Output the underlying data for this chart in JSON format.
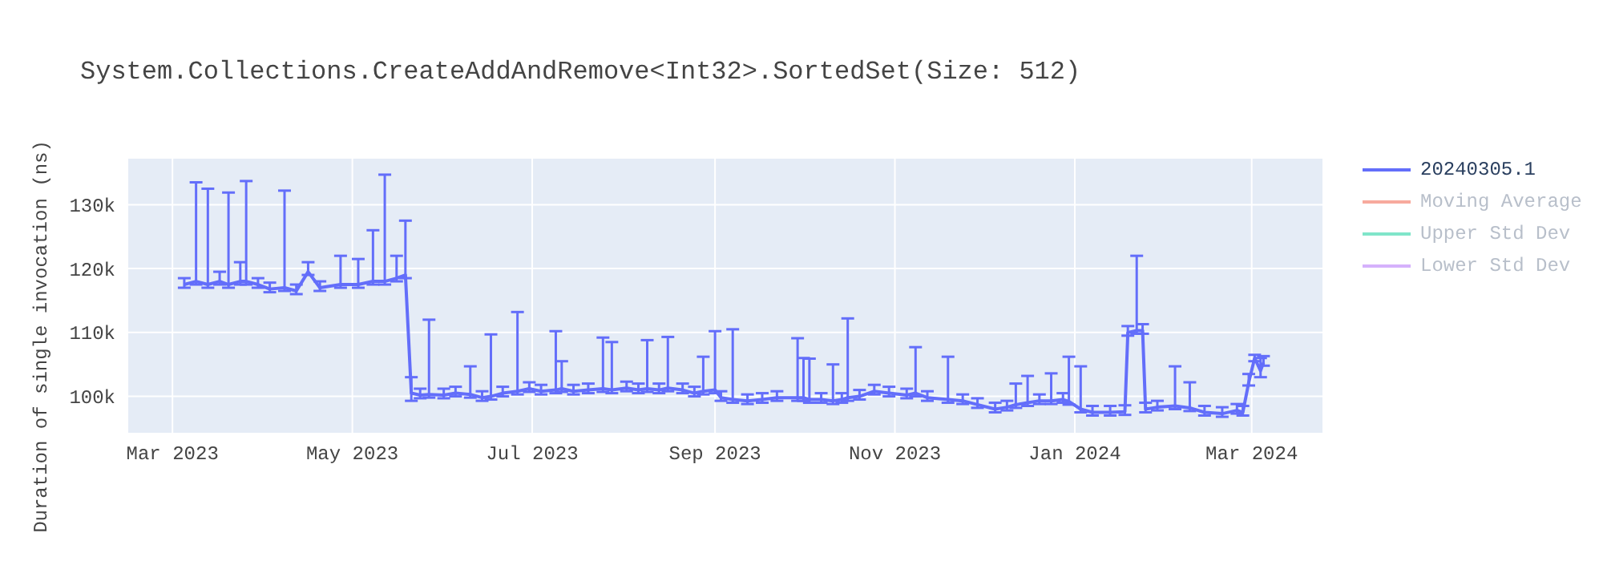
{
  "chart_data": {
    "type": "line",
    "title": "System.Collections.CreateAddAndRemove<Int32>.SortedSet(Size: 512)",
    "ylabel": "Duration of single invocation (ns)",
    "x": [
      "2023-03-05",
      "2023-03-09",
      "2023-03-13",
      "2023-03-17",
      "2023-03-20",
      "2023-03-24",
      "2023-03-26",
      "2023-03-30",
      "2023-04-03",
      "2023-04-08",
      "2023-04-12",
      "2023-04-16",
      "2023-04-20",
      "2023-04-27",
      "2023-05-03",
      "2023-05-08",
      "2023-05-12",
      "2023-05-16",
      "2023-05-19",
      "2023-05-21",
      "2023-05-24",
      "2023-05-27",
      "2023-06-01",
      "2023-06-05",
      "2023-06-10",
      "2023-06-14",
      "2023-06-17",
      "2023-06-21",
      "2023-06-26",
      "2023-06-30",
      "2023-07-04",
      "2023-07-09",
      "2023-07-11",
      "2023-07-15",
      "2023-07-20",
      "2023-07-25",
      "2023-07-28",
      "2023-08-02",
      "2023-08-06",
      "2023-08-09",
      "2023-08-13",
      "2023-08-16",
      "2023-08-21",
      "2023-08-25",
      "2023-08-28",
      "2023-09-01",
      "2023-09-03",
      "2023-09-07",
      "2023-09-12",
      "2023-09-17",
      "2023-09-22",
      "2023-09-29",
      "2023-10-01",
      "2023-10-03",
      "2023-10-07",
      "2023-10-11",
      "2023-10-14",
      "2023-10-16",
      "2023-10-20",
      "2023-10-25",
      "2023-10-30",
      "2023-11-05",
      "2023-11-08",
      "2023-11-12",
      "2023-11-19",
      "2023-11-24",
      "2023-11-29",
      "2023-12-05",
      "2023-12-09",
      "2023-12-12",
      "2023-12-16",
      "2023-12-20",
      "2023-12-24",
      "2023-12-28",
      "2023-12-30",
      "2024-01-03",
      "2024-01-07",
      "2024-01-13",
      "2024-01-18",
      "2024-01-19",
      "2024-01-22",
      "2024-01-24",
      "2024-01-25",
      "2024-01-29",
      "2024-02-04",
      "2024-02-09",
      "2024-02-14",
      "2024-02-20",
      "2024-02-25",
      "2024-02-27",
      "2024-02-29",
      "2024-03-02",
      "2024-03-04",
      "2024-03-05"
    ],
    "series": [
      {
        "name": "20240305.1",
        "color": "#636efa",
        "values": [
          117500,
          118000,
          117500,
          118000,
          117500,
          118000,
          118000,
          117500,
          116800,
          117000,
          116500,
          119500,
          117000,
          117500,
          117500,
          118000,
          118000,
          118500,
          119000,
          100500,
          100200,
          100300,
          100200,
          100500,
          100300,
          99800,
          100000,
          100500,
          100800,
          101200,
          100800,
          101000,
          101200,
          100800,
          101000,
          101200,
          101000,
          101300,
          101000,
          101200,
          101000,
          101300,
          101000,
          100500,
          100800,
          101000,
          99800,
          99500,
          99300,
          99500,
          99800,
          99800,
          99800,
          99500,
          99500,
          99300,
          99500,
          99800,
          100000,
          100800,
          100500,
          100200,
          100500,
          99800,
          99500,
          99300,
          98700,
          98000,
          98300,
          98700,
          99000,
          99300,
          99300,
          99500,
          99200,
          98000,
          97500,
          97500,
          97600,
          110000,
          110300,
          110300,
          98000,
          98300,
          98500,
          98200,
          97500,
          97300,
          97800,
          97500,
          102200,
          106000,
          104000,
          105300
        ],
        "errors": [
          [
            117000,
            118500
          ],
          [
            117500,
            133500
          ],
          [
            117000,
            132500
          ],
          [
            117500,
            119500
          ],
          [
            117000,
            131900
          ],
          [
            117500,
            121000
          ],
          [
            117500,
            133700
          ],
          [
            117000,
            118500
          ],
          [
            116300,
            117800
          ],
          [
            116500,
            132200
          ],
          [
            116000,
            117500
          ],
          [
            119000,
            121000
          ],
          [
            116500,
            118000
          ],
          [
            117000,
            122000
          ],
          [
            117000,
            121500
          ],
          [
            117500,
            126000
          ],
          [
            117500,
            134700
          ],
          [
            118000,
            122000
          ],
          [
            118500,
            127500
          ],
          [
            99300,
            103000
          ],
          [
            99700,
            101200
          ],
          [
            99800,
            112000
          ],
          [
            99700,
            101200
          ],
          [
            100000,
            101500
          ],
          [
            99800,
            104700
          ],
          [
            99300,
            100800
          ],
          [
            99500,
            109700
          ],
          [
            100000,
            101500
          ],
          [
            100300,
            113200
          ],
          [
            100700,
            102200
          ],
          [
            100300,
            101800
          ],
          [
            100500,
            110200
          ],
          [
            100700,
            105500
          ],
          [
            100300,
            101800
          ],
          [
            100500,
            102000
          ],
          [
            100700,
            109200
          ],
          [
            100500,
            108500
          ],
          [
            100800,
            102300
          ],
          [
            100500,
            102000
          ],
          [
            100700,
            108800
          ],
          [
            100500,
            102000
          ],
          [
            100800,
            109300
          ],
          [
            100500,
            102000
          ],
          [
            100000,
            101500
          ],
          [
            100300,
            106200
          ],
          [
            100500,
            110200
          ],
          [
            99300,
            100800
          ],
          [
            99000,
            110500
          ],
          [
            98800,
            100300
          ],
          [
            99000,
            100500
          ],
          [
            99300,
            100800
          ],
          [
            99300,
            109100
          ],
          [
            99300,
            106000
          ],
          [
            99000,
            105900
          ],
          [
            99000,
            100500
          ],
          [
            98800,
            105000
          ],
          [
            99000,
            100500
          ],
          [
            99300,
            112200
          ],
          [
            99500,
            101000
          ],
          [
            100300,
            101800
          ],
          [
            100000,
            101500
          ],
          [
            99700,
            101200
          ],
          [
            100000,
            107700
          ],
          [
            99300,
            100800
          ],
          [
            99000,
            106200
          ],
          [
            98800,
            100300
          ],
          [
            98200,
            99700
          ],
          [
            97500,
            99000
          ],
          [
            97800,
            99300
          ],
          [
            98200,
            102000
          ],
          [
            98500,
            103200
          ],
          [
            98800,
            100300
          ],
          [
            98800,
            103600
          ],
          [
            99000,
            100500
          ],
          [
            98700,
            106200
          ],
          [
            97500,
            104700
          ],
          [
            97000,
            98500
          ],
          [
            97000,
            98500
          ],
          [
            97100,
            98600
          ],
          [
            109500,
            111000
          ],
          [
            109800,
            122000
          ],
          [
            109800,
            111300
          ],
          [
            97500,
            99000
          ],
          [
            97800,
            99300
          ],
          [
            98000,
            104700
          ],
          [
            97700,
            102200
          ],
          [
            97000,
            98500
          ],
          [
            96800,
            98300
          ],
          [
            97300,
            98800
          ],
          [
            97000,
            98500
          ],
          [
            101700,
            103500
          ],
          [
            105500,
            106500
          ],
          [
            103000,
            106000
          ],
          [
            104800,
            106300
          ]
        ]
      },
      {
        "name": "Moving Average",
        "color": "#f7aa9d",
        "values": [
          null,
          null,
          null,
          null,
          null,
          null,
          null,
          null,
          null,
          null,
          null,
          null,
          null,
          null,
          null,
          null,
          null,
          null,
          null,
          null,
          null,
          null,
          null,
          null,
          null,
          null,
          null,
          null,
          null,
          null,
          null,
          null,
          null,
          null,
          null,
          null,
          null,
          null,
          null,
          null,
          null,
          null,
          null,
          null,
          null,
          null,
          null,
          null,
          null,
          null,
          null,
          null,
          null,
          null,
          null,
          null,
          null,
          null,
          null,
          null,
          null,
          null,
          null,
          null,
          null,
          null,
          null,
          null,
          null,
          null,
          null,
          null,
          null,
          null,
          null,
          null,
          null,
          null,
          null,
          null,
          null,
          null,
          null,
          null,
          null,
          null,
          null,
          null,
          null,
          null,
          null,
          null,
          null,
          null
        ]
      },
      {
        "name": "Upper Std Dev",
        "color": "#80e5ca",
        "values": [
          null,
          null,
          null,
          null,
          null,
          null,
          null,
          null,
          null,
          null,
          null,
          null,
          null,
          null,
          null,
          null,
          null,
          null,
          null,
          null,
          null,
          null,
          null,
          null,
          null,
          null,
          null,
          null,
          null,
          null,
          null,
          null,
          null,
          null,
          null,
          null,
          null,
          null,
          null,
          null,
          null,
          null,
          null,
          null,
          null,
          null,
          null,
          null,
          null,
          null,
          null,
          null,
          null,
          null,
          null,
          null,
          null,
          null,
          null,
          null,
          null,
          null,
          null,
          null,
          null,
          null,
          null,
          null,
          null,
          null,
          null,
          null,
          null,
          null,
          null,
          null,
          null,
          null,
          null,
          null,
          null,
          null,
          null,
          null,
          null,
          null,
          null,
          null,
          null,
          null,
          null,
          null,
          null,
          null
        ]
      },
      {
        "name": "Lower Std Dev",
        "color": "#d5b1fc",
        "values": [
          null,
          null,
          null,
          null,
          null,
          null,
          null,
          null,
          null,
          null,
          null,
          null,
          null,
          null,
          null,
          null,
          null,
          null,
          null,
          null,
          null,
          null,
          null,
          null,
          null,
          null,
          null,
          null,
          null,
          null,
          null,
          null,
          null,
          null,
          null,
          null,
          null,
          null,
          null,
          null,
          null,
          null,
          null,
          null,
          null,
          null,
          null,
          null,
          null,
          null,
          null,
          null,
          null,
          null,
          null,
          null,
          null,
          null,
          null,
          null,
          null,
          null,
          null,
          null,
          null,
          null,
          null,
          null,
          null,
          null,
          null,
          null,
          null,
          null,
          null,
          null,
          null,
          null,
          null,
          null,
          null,
          null,
          null,
          null,
          null,
          null,
          null,
          null,
          null,
          null,
          null,
          null,
          null,
          null
        ]
      }
    ],
    "xlim": [
      "2023-02-14",
      "2024-03-25"
    ],
    "xticks": [
      {
        "value": "2023-03-01",
        "label": "Mar 2023"
      },
      {
        "value": "2023-05-01",
        "label": "May 2023"
      },
      {
        "value": "2023-07-01",
        "label": "Jul 2023"
      },
      {
        "value": "2023-09-01",
        "label": "Sep 2023"
      },
      {
        "value": "2023-11-01",
        "label": "Nov 2023"
      },
      {
        "value": "2024-01-01",
        "label": "Jan 2024"
      },
      {
        "value": "2024-03-01",
        "label": "Mar 2024"
      }
    ],
    "ylim": [
      94300,
      137200
    ],
    "yticks": [
      {
        "value": 100000,
        "label": "100k"
      },
      {
        "value": 110000,
        "label": "110k"
      },
      {
        "value": 120000,
        "label": "120k"
      },
      {
        "value": 130000,
        "label": "130k"
      }
    ],
    "grid": true,
    "legend": "top right",
    "marker": "none",
    "line_style": "solid"
  }
}
